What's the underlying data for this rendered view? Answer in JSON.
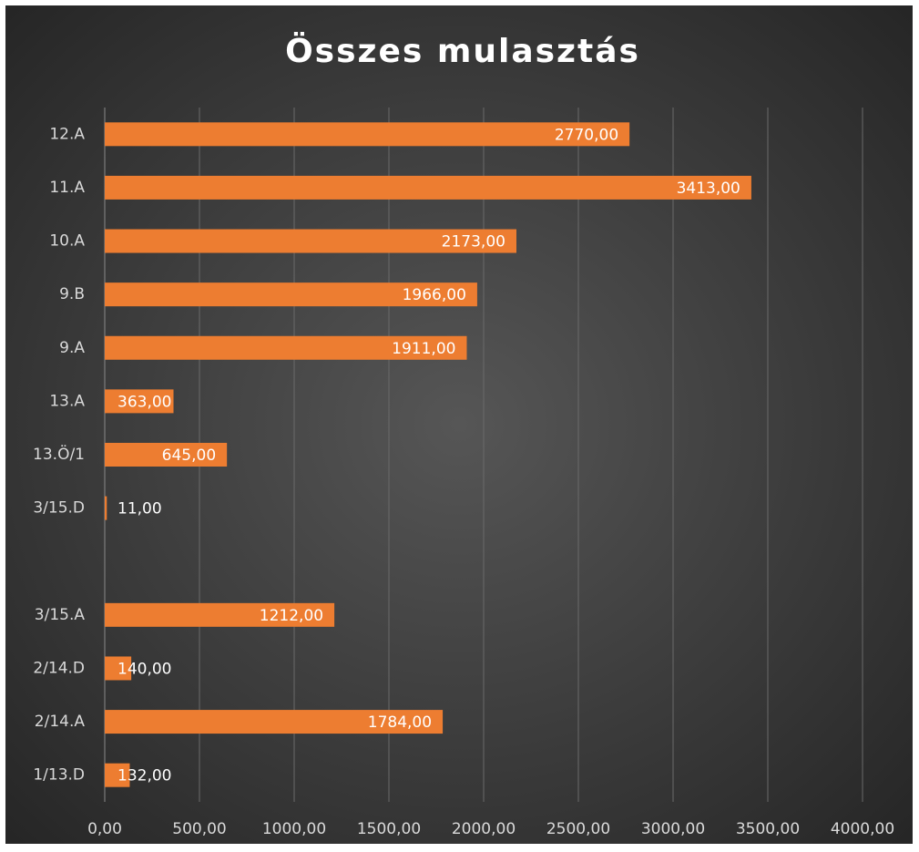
{
  "chart_data": {
    "type": "bar",
    "orientation": "horizontal",
    "title": "Összes mulasztás",
    "categories": [
      "12.A",
      "11.A",
      "10.A",
      "9.B",
      "9.A",
      "13.A",
      "13.Ö/1",
      "3/15.D",
      null,
      "3/15.A",
      "2/14.D",
      "2/14.A",
      "1/13.D"
    ],
    "values": [
      2770,
      3413,
      2173,
      1966,
      1911,
      363,
      645,
      11,
      null,
      1212,
      140,
      1784,
      132
    ],
    "value_labels": [
      "2770,00",
      "3413,00",
      "2173,00",
      "1966,00",
      "1911,00",
      "363,00",
      "645,00",
      "11,00",
      null,
      "1212,00",
      "140,00",
      "1784,00",
      "132,00"
    ],
    "color": "#ed7d31",
    "xlim": [
      0,
      4000
    ],
    "xticks": [
      {
        "value": 0,
        "label": "0,00"
      },
      {
        "value": 500,
        "label": "500,00"
      },
      {
        "value": 1000,
        "label": "1000,00"
      },
      {
        "value": 1500,
        "label": "1500,00"
      },
      {
        "value": 2000,
        "label": "2000,00"
      },
      {
        "value": 2500,
        "label": "2500,00"
      },
      {
        "value": 3000,
        "label": "3000,00"
      },
      {
        "value": 3500,
        "label": "3500,00"
      },
      {
        "value": 4000,
        "label": "4000,00"
      }
    ],
    "grid": true
  }
}
